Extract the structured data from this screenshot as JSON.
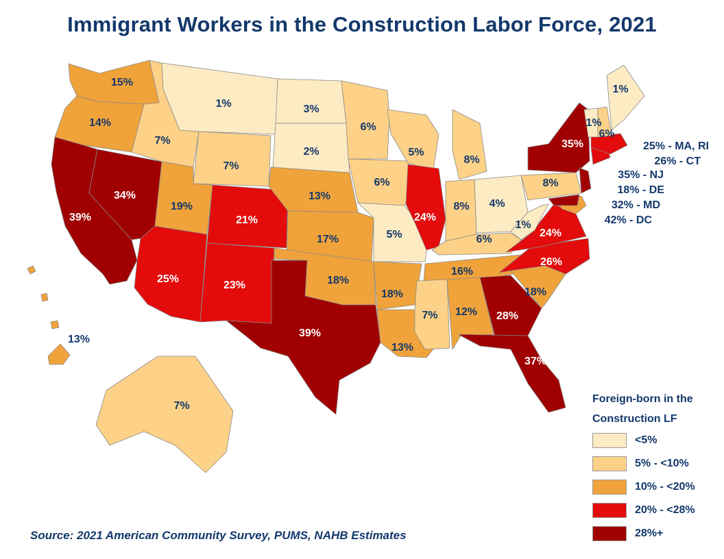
{
  "title": "Immigrant Workers in the Construction Labor Force, 2021",
  "source": "Source: 2021 American Community Survey, PUMS, NAHB Estimates",
  "colors": {
    "lt5": "#fdebc3",
    "5to10": "#fdd187",
    "10to20": "#f0a33a",
    "20to28": "#e30b0b",
    "28plus": "#a00000",
    "text": "#13386b"
  },
  "legend": {
    "title_line1": "Foreign-born in the",
    "title_line2": "Construction LF",
    "items": [
      {
        "label": "<5%",
        "color": "#fdebc3"
      },
      {
        "label": "5% - <10%",
        "color": "#fdd187"
      },
      {
        "label": "10% - <20%",
        "color": "#f0a33a"
      },
      {
        "label": "20% - <28%",
        "color": "#e30b0b"
      },
      {
        "label": "28%+",
        "color": "#a00000"
      }
    ]
  },
  "states": {
    "WA": "15%",
    "OR": "14%",
    "CA": "39%",
    "NV": "34%",
    "ID": "7%",
    "MT": "1%",
    "WY": "7%",
    "UT": "19%",
    "AZ": "25%",
    "CO": "21%",
    "NM": "23%",
    "ND": "3%",
    "SD": "2%",
    "NE": "13%",
    "KS": "17%",
    "OK": "18%",
    "TX": "39%",
    "MN": "6%",
    "IA": "6%",
    "MO": "5%",
    "AR": "18%",
    "LA": "13%",
    "WI": "5%",
    "IL": "24%",
    "MI": "8%",
    "IN": "8%",
    "OH": "4%",
    "KY": "6%",
    "TN": "16%",
    "MS": "7%",
    "AL": "12%",
    "GA": "28%",
    "FL": "37%",
    "SC": "18%",
    "NC": "26%",
    "VA": "24%",
    "WV": "1%",
    "PA": "8%",
    "NY": "35%",
    "VT": "1%",
    "NH": "6%",
    "ME": "1%",
    "AK": "7%",
    "HI": "13%"
  },
  "northeast_labels": [
    "25% - MA, RI",
    "26% - CT",
    "35% - NJ",
    "18% - DE",
    "32% - MD",
    "42% - DC"
  ]
}
